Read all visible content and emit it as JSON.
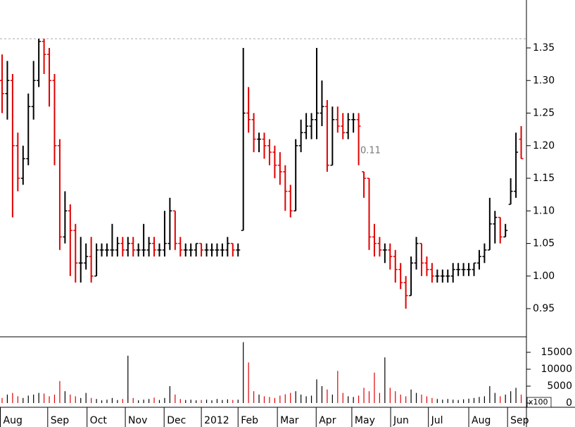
{
  "chart_data": {
    "type": "ohlc",
    "up_color": "#000000",
    "down_color": "#e00000",
    "xlim": [
      -0.4,
      100
    ],
    "xticks": [
      {
        "value": -0.4,
        "label": "Aug"
      },
      {
        "value": 8.7,
        "label": "Sep"
      },
      {
        "value": 16.2,
        "label": "Oct"
      },
      {
        "value": 23.5,
        "label": "Nov"
      },
      {
        "value": 30.9,
        "label": "Dec"
      },
      {
        "value": 38,
        "label": "2012"
      },
      {
        "value": 45,
        "label": "Feb"
      },
      {
        "value": 52.5,
        "label": "Mar"
      },
      {
        "value": 59.9,
        "label": "Apr"
      },
      {
        "value": 66.7,
        "label": "May"
      },
      {
        "value": 74.1,
        "label": "Jun"
      },
      {
        "value": 81.3,
        "label": "Jul"
      },
      {
        "value": 89,
        "label": "Aug"
      },
      {
        "value": 96.4,
        "label": "Sep"
      }
    ],
    "ylim": [
      0.9068,
      1.4235
    ],
    "yticks": [
      0.95,
      {
        "value": 1.0,
        "label": "1.00"
      },
      1.05,
      {
        "value": 1.1,
        "label": "1.10"
      },
      1.15,
      {
        "value": 1.2,
        "label": "1.20"
      },
      1.25,
      {
        "value": 1.3,
        "label": "1.30"
      },
      1.35
    ],
    "reference_line": 1.364,
    "annotations": [
      "0.11"
    ],
    "ohlc": [
      [
        1.3,
        1.34,
        1.25,
        1.28
      ],
      [
        1.28,
        1.33,
        1.24,
        1.3
      ],
      [
        1.3,
        1.31,
        1.09,
        1.2
      ],
      [
        1.2,
        1.22,
        1.13,
        1.15
      ],
      [
        1.15,
        1.2,
        1.14,
        1.18
      ],
      [
        1.18,
        1.28,
        1.17,
        1.26
      ],
      [
        1.26,
        1.33,
        1.24,
        1.3
      ],
      [
        1.3,
        1.364,
        1.29,
        1.36
      ],
      [
        1.36,
        1.364,
        1.31,
        1.34
      ],
      [
        1.34,
        1.35,
        1.26,
        1.3
      ],
      [
        1.3,
        1.31,
        1.17,
        1.2
      ],
      [
        1.2,
        1.21,
        1.04,
        1.06
      ],
      [
        1.06,
        1.13,
        1.05,
        1.1
      ],
      [
        1.1,
        1.11,
        1.0,
        1.07
      ],
      [
        1.07,
        1.08,
        0.99,
        1.02
      ],
      [
        1.02,
        1.06,
        0.99,
        1.02
      ],
      [
        1.02,
        1.05,
        1.01,
        1.03
      ],
      [
        1.03,
        1.06,
        0.99,
        1.0
      ],
      [
        1.0,
        1.05,
        1.0,
        1.04
      ],
      [
        1.04,
        1.05,
        1.03,
        1.04
      ],
      [
        1.04,
        1.05,
        1.03,
        1.04
      ],
      [
        1.04,
        1.08,
        1.03,
        1.04
      ],
      [
        1.04,
        1.06,
        1.03,
        1.05
      ],
      [
        1.05,
        1.06,
        1.03,
        1.04
      ],
      [
        1.04,
        1.06,
        1.03,
        1.05
      ],
      [
        1.05,
        1.06,
        1.03,
        1.04
      ],
      [
        1.04,
        1.05,
        1.03,
        1.04
      ],
      [
        1.04,
        1.08,
        1.03,
        1.04
      ],
      [
        1.04,
        1.06,
        1.03,
        1.05
      ],
      [
        1.05,
        1.06,
        1.03,
        1.04
      ],
      [
        1.04,
        1.05,
        1.03,
        1.04
      ],
      [
        1.04,
        1.1,
        1.03,
        1.05
      ],
      [
        1.05,
        1.12,
        1.04,
        1.1
      ],
      [
        1.1,
        1.1,
        1.04,
        1.05
      ],
      [
        1.05,
        1.06,
        1.03,
        1.04
      ],
      [
        1.04,
        1.05,
        1.03,
        1.04
      ],
      [
        1.04,
        1.05,
        1.03,
        1.04
      ],
      [
        1.04,
        1.05,
        1.03,
        1.05
      ],
      [
        1.05,
        1.05,
        1.03,
        1.04
      ],
      [
        1.04,
        1.05,
        1.03,
        1.04
      ],
      [
        1.04,
        1.05,
        1.03,
        1.04
      ],
      [
        1.04,
        1.05,
        1.03,
        1.04
      ],
      [
        1.04,
        1.05,
        1.03,
        1.04
      ],
      [
        1.04,
        1.06,
        1.03,
        1.05
      ],
      [
        1.05,
        1.05,
        1.03,
        1.04
      ],
      [
        1.04,
        1.05,
        1.03,
        1.04
      ],
      [
        1.07,
        1.35,
        1.07,
        1.25
      ],
      [
        1.25,
        1.29,
        1.22,
        1.24
      ],
      [
        1.24,
        1.25,
        1.19,
        1.21
      ],
      [
        1.21,
        1.22,
        1.19,
        1.21
      ],
      [
        1.21,
        1.22,
        1.18,
        1.2
      ],
      [
        1.2,
        1.21,
        1.17,
        1.19
      ],
      [
        1.19,
        1.2,
        1.15,
        1.17
      ],
      [
        1.17,
        1.19,
        1.14,
        1.16
      ],
      [
        1.16,
        1.17,
        1.1,
        1.13
      ],
      [
        1.13,
        1.14,
        1.09,
        1.1
      ],
      [
        1.1,
        1.21,
        1.1,
        1.2
      ],
      [
        1.2,
        1.24,
        1.19,
        1.22
      ],
      [
        1.22,
        1.25,
        1.21,
        1.23
      ],
      [
        1.23,
        1.25,
        1.21,
        1.24
      ],
      [
        1.24,
        1.35,
        1.21,
        1.25
      ],
      [
        1.25,
        1.3,
        1.23,
        1.26
      ],
      [
        1.26,
        1.27,
        1.16,
        1.17
      ],
      [
        1.17,
        1.26,
        1.17,
        1.24
      ],
      [
        1.24,
        1.26,
        1.22,
        1.23
      ],
      [
        1.23,
        1.25,
        1.21,
        1.22
      ],
      [
        1.22,
        1.25,
        1.21,
        1.24
      ],
      [
        1.24,
        1.25,
        1.22,
        1.24
      ],
      [
        1.24,
        1.25,
        1.17,
        1.23
      ],
      [
        1.16,
        1.16,
        1.12,
        1.15
      ],
      [
        1.15,
        1.15,
        1.04,
        1.06
      ],
      [
        1.06,
        1.08,
        1.03,
        1.05
      ],
      [
        1.05,
        1.06,
        1.03,
        1.04
      ],
      [
        1.04,
        1.05,
        1.02,
        1.04
      ],
      [
        1.04,
        1.05,
        1.01,
        1.03
      ],
      [
        1.03,
        1.04,
        0.99,
        1.01
      ],
      [
        1.01,
        1.02,
        0.98,
        0.99
      ],
      [
        0.99,
        1.0,
        0.95,
        0.97
      ],
      [
        0.97,
        1.03,
        0.97,
        1.02
      ],
      [
        1.02,
        1.06,
        1.01,
        1.05
      ],
      [
        1.05,
        1.05,
        1.0,
        1.02
      ],
      [
        1.02,
        1.03,
        1.0,
        1.01
      ],
      [
        1.01,
        1.02,
        0.99,
        1.0
      ],
      [
        1.0,
        1.01,
        0.99,
        1.0
      ],
      [
        1.0,
        1.01,
        0.99,
        1.0
      ],
      [
        1.0,
        1.01,
        0.99,
        1.0
      ],
      [
        1.0,
        1.02,
        0.99,
        1.01
      ],
      [
        1.01,
        1.02,
        1.0,
        1.01
      ],
      [
        1.01,
        1.02,
        1.0,
        1.01
      ],
      [
        1.01,
        1.02,
        1.0,
        1.01
      ],
      [
        1.01,
        1.02,
        1.0,
        1.02
      ],
      [
        1.02,
        1.04,
        1.01,
        1.03
      ],
      [
        1.03,
        1.05,
        1.02,
        1.04
      ],
      [
        1.04,
        1.12,
        1.04,
        1.08
      ],
      [
        1.08,
        1.1,
        1.05,
        1.09
      ],
      [
        1.09,
        1.09,
        1.05,
        1.06
      ],
      [
        1.06,
        1.08,
        1.06,
        1.07
      ],
      [
        1.11,
        1.15,
        1.11,
        1.13
      ],
      [
        1.13,
        1.22,
        1.12,
        1.19
      ],
      [
        1.21,
        1.23,
        1.18,
        1.18
      ]
    ],
    "volume": [
      1500,
      2500,
      3000,
      2000,
      1500,
      2200,
      2500,
      3000,
      2800,
      2000,
      2500,
      6500,
      3500,
      2500,
      2000,
      1500,
      3000,
      1500,
      1200,
      800,
      1000,
      1500,
      900,
      1200,
      14000,
      1500,
      800,
      1000,
      1200,
      1600,
      900,
      1500,
      5000,
      2500,
      1200,
      900,
      1000,
      800,
      900,
      1000,
      800,
      1200,
      900,
      1100,
      900,
      1000,
      18000,
      12000,
      3500,
      2500,
      2000,
      1800,
      1500,
      2200,
      2600,
      3000,
      3500,
      2500,
      2000,
      2200,
      7000,
      5000,
      4000,
      2500,
      9500,
      3000,
      2000,
      1800,
      2200,
      4500,
      3500,
      9000,
      3000,
      13500,
      4500,
      3500,
      2500,
      2000,
      4000,
      3000,
      2500,
      2000,
      1500,
      1200,
      1000,
      1200,
      1000,
      900,
      1100,
      1300,
      1500,
      1800,
      2000,
      5000,
      3000,
      2000,
      2500,
      3500,
      4500,
      2500
    ],
    "volume_ylim": [
      -1250,
      19167
    ],
    "volume_yticks": [
      0,
      5000,
      10000,
      15000
    ],
    "volume_unit": "x100"
  }
}
